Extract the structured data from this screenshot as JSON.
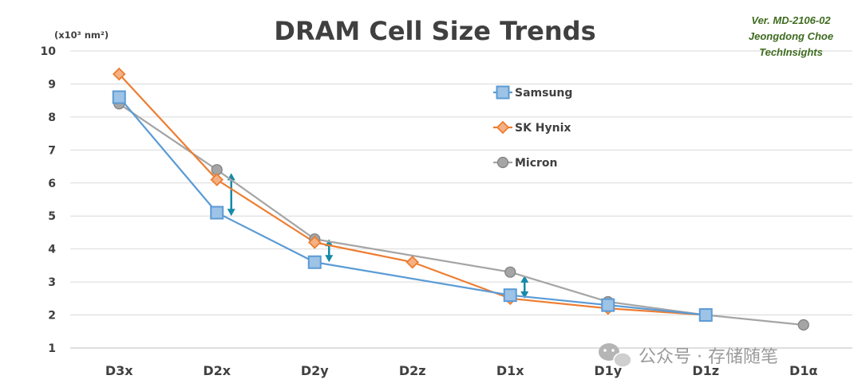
{
  "chart_data": {
    "type": "line",
    "title": "DRAM Cell Size Trends",
    "ylabel": "(x10³ nm²)",
    "xlabel": "",
    "categories": [
      "D3x",
      "D2x",
      "D2y",
      "D2z",
      "D1x",
      "D1y",
      "D1z",
      "D1α"
    ],
    "ylim": [
      1,
      10
    ],
    "yticks": [
      1,
      2,
      3,
      4,
      5,
      6,
      7,
      8,
      9,
      10
    ],
    "grid": true,
    "legend_position": "upper-right-center",
    "series": [
      {
        "name": "Samsung",
        "color": "#5b9bd5",
        "fill": "#9dc3e6",
        "marker": "square",
        "values": [
          8.6,
          5.1,
          3.6,
          null,
          2.6,
          2.3,
          2.0,
          null
        ]
      },
      {
        "name": "SK Hynix",
        "color": "#ed7d31",
        "fill": "#f4b183",
        "marker": "diamond",
        "values": [
          9.3,
          6.1,
          4.2,
          3.6,
          2.5,
          2.2,
          2.0,
          null
        ]
      },
      {
        "name": "Micron",
        "color": "#a5a5a5",
        "fill": "#a5a5a5",
        "marker": "circle",
        "values": [
          8.4,
          6.4,
          4.3,
          null,
          3.3,
          2.4,
          2.0,
          1.7
        ]
      }
    ],
    "annotations": {
      "arrow_color": "#168aa8",
      "gap_arrows": [
        {
          "category": "D2x",
          "from": 5.0,
          "to": 6.3
        },
        {
          "category": "D2y",
          "from": 3.6,
          "to": 4.3
        },
        {
          "category": "D1x",
          "from": 2.5,
          "to": 3.2
        }
      ],
      "version_note": [
        "Ver. MD-2106-02",
        "Jeongdong Choe",
        "TechInsights"
      ]
    }
  },
  "watermark": {
    "text": "公众号 · 存储随笔",
    "icon": "wechat-icon"
  }
}
